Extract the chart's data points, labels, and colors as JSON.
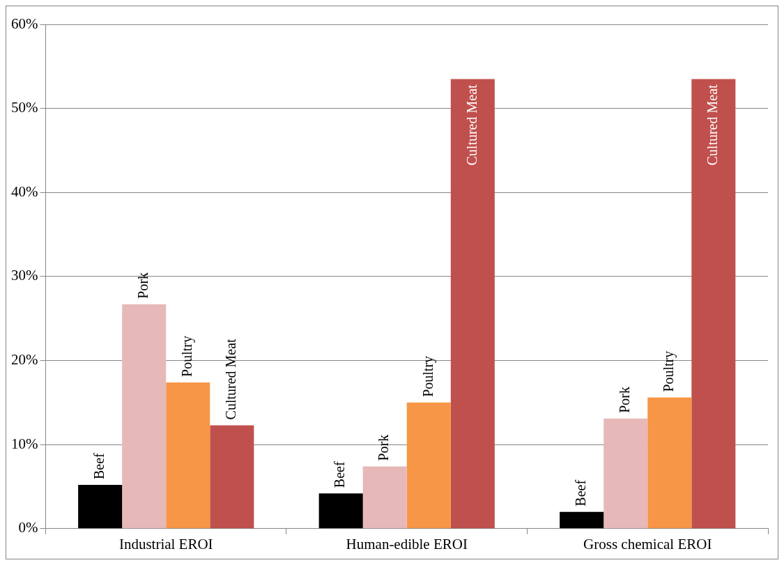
{
  "chart_data": {
    "type": "bar",
    "categories": [
      "Industrial EROI",
      "Human-edible EROI",
      "Gross chemical EROI"
    ],
    "series": [
      {
        "name": "Beef",
        "color": "#000000",
        "values": [
          5.2,
          4.2,
          2.0
        ]
      },
      {
        "name": "Pork",
        "color": "#e6b9b8",
        "values": [
          26.7,
          7.4,
          13.1
        ]
      },
      {
        "name": "Poultry",
        "color": "#f79646",
        "values": [
          17.4,
          15.0,
          15.6
        ]
      },
      {
        "name": "Cultured Meat",
        "color": "#c0504d",
        "values": [
          12.3,
          53.5,
          53.5
        ]
      }
    ],
    "ylim": [
      0,
      60
    ],
    "yticks": [
      {
        "value": 0,
        "label": "0%"
      },
      {
        "value": 10,
        "label": "10%"
      },
      {
        "value": 20,
        "label": "20%"
      },
      {
        "value": 30,
        "label": "30%"
      },
      {
        "value": 40,
        "label": "40%"
      },
      {
        "value": 50,
        "label": "50%"
      },
      {
        "value": 60,
        "label": "60%"
      }
    ],
    "grid": "y",
    "legend": false
  }
}
